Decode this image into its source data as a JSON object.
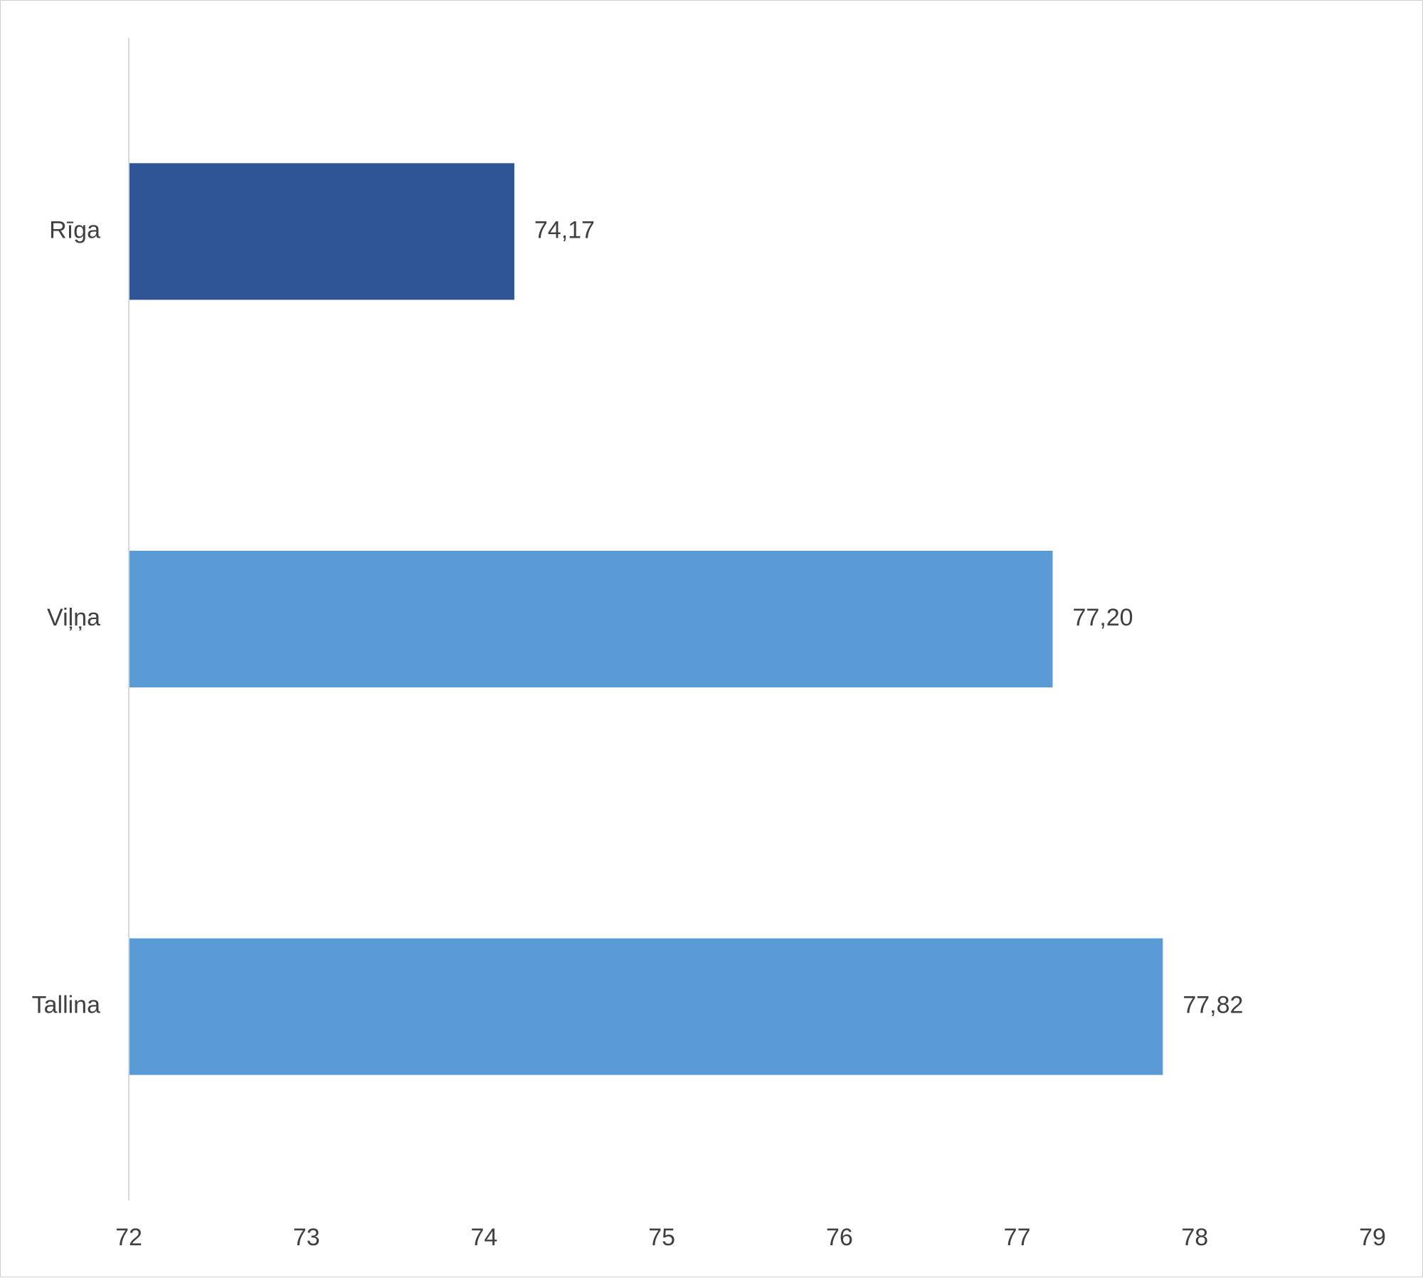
{
  "colors": {
    "highlight": "#2f5597",
    "default": "#5b9bd5",
    "axis": "#d9d9d9",
    "text": "#404040"
  },
  "chart_data": {
    "type": "bar",
    "orientation": "horizontal",
    "categories": [
      "Rīga",
      "Viļņa",
      "Tallina"
    ],
    "values": [
      74.17,
      77.2,
      77.82
    ],
    "value_labels": [
      "74,17",
      "77,20",
      "77,82"
    ],
    "highlighted": [
      true,
      false,
      false
    ],
    "xlim": [
      72,
      79
    ],
    "x_ticks": [
      72,
      73,
      74,
      75,
      76,
      77,
      78,
      79
    ],
    "x_tick_labels": [
      "72",
      "73",
      "74",
      "75",
      "76",
      "77",
      "78",
      "79"
    ],
    "grid": false,
    "legend": "none"
  }
}
